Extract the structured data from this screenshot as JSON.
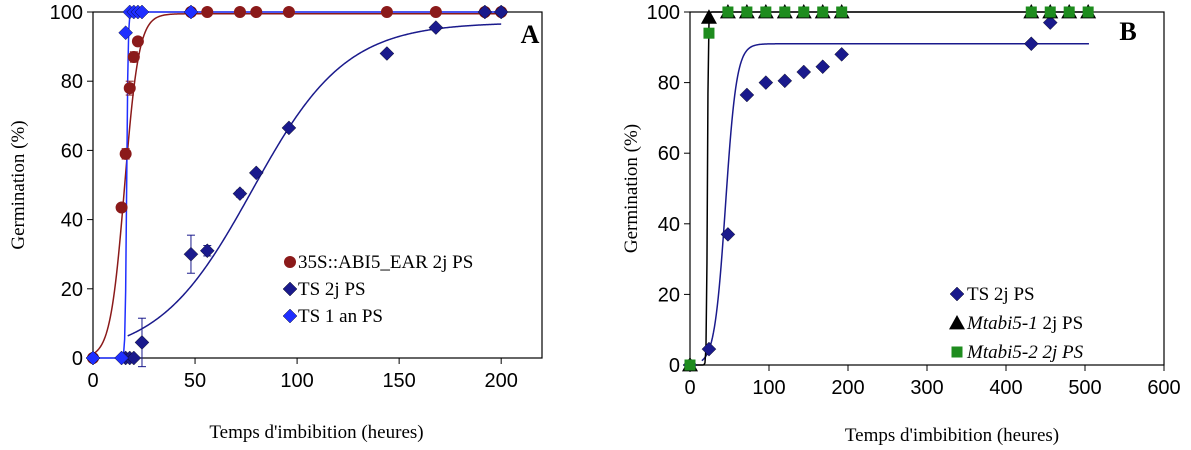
{
  "chart_data": [
    {
      "type": "scatter",
      "panel_label": "A",
      "xlabel": "Temps d'imbibition (heures)",
      "ylabel": "Germination (%)",
      "xlim": [
        0,
        220
      ],
      "ylim": [
        0,
        100
      ],
      "xticks": [
        "0",
        "50",
        "100",
        "150",
        "200"
      ],
      "yticks": [
        "0",
        "20",
        "40",
        "60",
        "80",
        "100"
      ],
      "legend_position": "bottom-right",
      "series": [
        {
          "name": "35S::ABI5_EAR 2j PS",
          "color": "#8b1a1a",
          "marker": "circle",
          "x": [
            0,
            14,
            16,
            18,
            20,
            22,
            48,
            56,
            72,
            80,
            96,
            144,
            168,
            192,
            200
          ],
          "y": [
            0,
            43.5,
            59,
            78,
            87,
            91.5,
            100,
            100,
            100,
            100,
            100,
            100,
            100,
            100,
            100
          ],
          "err": [
            0,
            0,
            1.5,
            2,
            1.5,
            0,
            0,
            0,
            0,
            0,
            0,
            0,
            0,
            0,
            0
          ],
          "fit": {
            "kind": "logistic",
            "max": 99.5,
            "x50": 15.5,
            "k": 3.5,
            "from": 0,
            "to": 200
          }
        },
        {
          "name": "TS 2j PS",
          "color": "#1a1a8c",
          "marker": "diamond",
          "x": [
            0,
            16,
            18,
            20,
            24,
            48,
            56,
            72,
            80,
            96,
            144,
            168,
            192,
            200
          ],
          "y": [
            0,
            0,
            0,
            0,
            4.5,
            30,
            31,
            47.5,
            53.5,
            66.5,
            88,
            95.5,
            100,
            100
          ],
          "err": [
            0,
            0,
            0,
            0,
            7,
            5.5,
            1.5,
            1,
            0,
            0,
            0,
            0,
            0,
            0
          ],
          "fit": {
            "kind": "logistic",
            "max": 97,
            "x50": 78,
            "k": 23,
            "from": 17,
            "to": 200
          }
        },
        {
          "name": "TS 1 an PS",
          "color": "#1f2fff",
          "marker": "diamond",
          "x": [
            0,
            14,
            16,
            18,
            20,
            22,
            24,
            48
          ],
          "y": [
            0,
            0,
            94,
            100,
            100,
            100,
            100,
            100
          ],
          "err": [
            0,
            0,
            0,
            0,
            0,
            0,
            0,
            0
          ],
          "fit": {
            "kind": "logistic",
            "max": 100,
            "x50": 16.5,
            "k": 0.35,
            "from": 0,
            "to": 200
          }
        }
      ]
    },
    {
      "type": "scatter",
      "panel_label": "B",
      "xlabel": "Temps d'imbibition (heures)",
      "ylabel": "Germination (%)",
      "xlim": [
        0,
        600
      ],
      "ylim": [
        0,
        100
      ],
      "xticks": [
        "0",
        "100",
        "200",
        "300",
        "400",
        "500",
        "600"
      ],
      "yticks": [
        "0",
        "20",
        "40",
        "60",
        "80",
        "100"
      ],
      "legend_position": "bottom-right",
      "series": [
        {
          "name_parts": [
            {
              "text": "TS 2j PS",
              "italic": false
            }
          ],
          "color": "#1a1a8c",
          "marker": "diamond",
          "x": [
            0,
            24,
            48,
            72,
            96,
            120,
            144,
            168,
            192,
            432,
            456
          ],
          "y": [
            0,
            4.5,
            37,
            76.5,
            80,
            80.5,
            83,
            84.5,
            88,
            91,
            97
          ],
          "fit": {
            "kind": "logistic",
            "max": 91,
            "x50": 45,
            "k": 7,
            "from": 15,
            "to": 505
          }
        },
        {
          "name_parts": [
            {
              "text": "Mtabi5-1",
              "italic": true
            },
            {
              "text": " 2j PS",
              "italic": false
            }
          ],
          "color": "#000000",
          "marker": "triangle",
          "x": [
            0,
            24,
            48,
            72,
            96,
            120,
            144,
            168,
            192,
            432,
            456,
            480,
            504
          ],
          "y": [
            0,
            98.5,
            100,
            100,
            100,
            100,
            100,
            100,
            100,
            100,
            100,
            100,
            100
          ],
          "fit": {
            "kind": "logistic",
            "max": 100,
            "x50": 22,
            "k": 0.6,
            "from": 0,
            "to": 505
          }
        },
        {
          "name_parts": [
            {
              "text": "Mtabi5-2 2j PS",
              "italic": true
            }
          ],
          "color": "#1e8c1e",
          "marker": "square",
          "x": [
            0,
            24,
            48,
            72,
            96,
            120,
            144,
            168,
            192,
            432,
            456,
            480,
            504
          ],
          "y": [
            0,
            94,
            100,
            100,
            100,
            100,
            100,
            100,
            100,
            100,
            100,
            100,
            100
          ],
          "fit": null
        }
      ]
    }
  ]
}
